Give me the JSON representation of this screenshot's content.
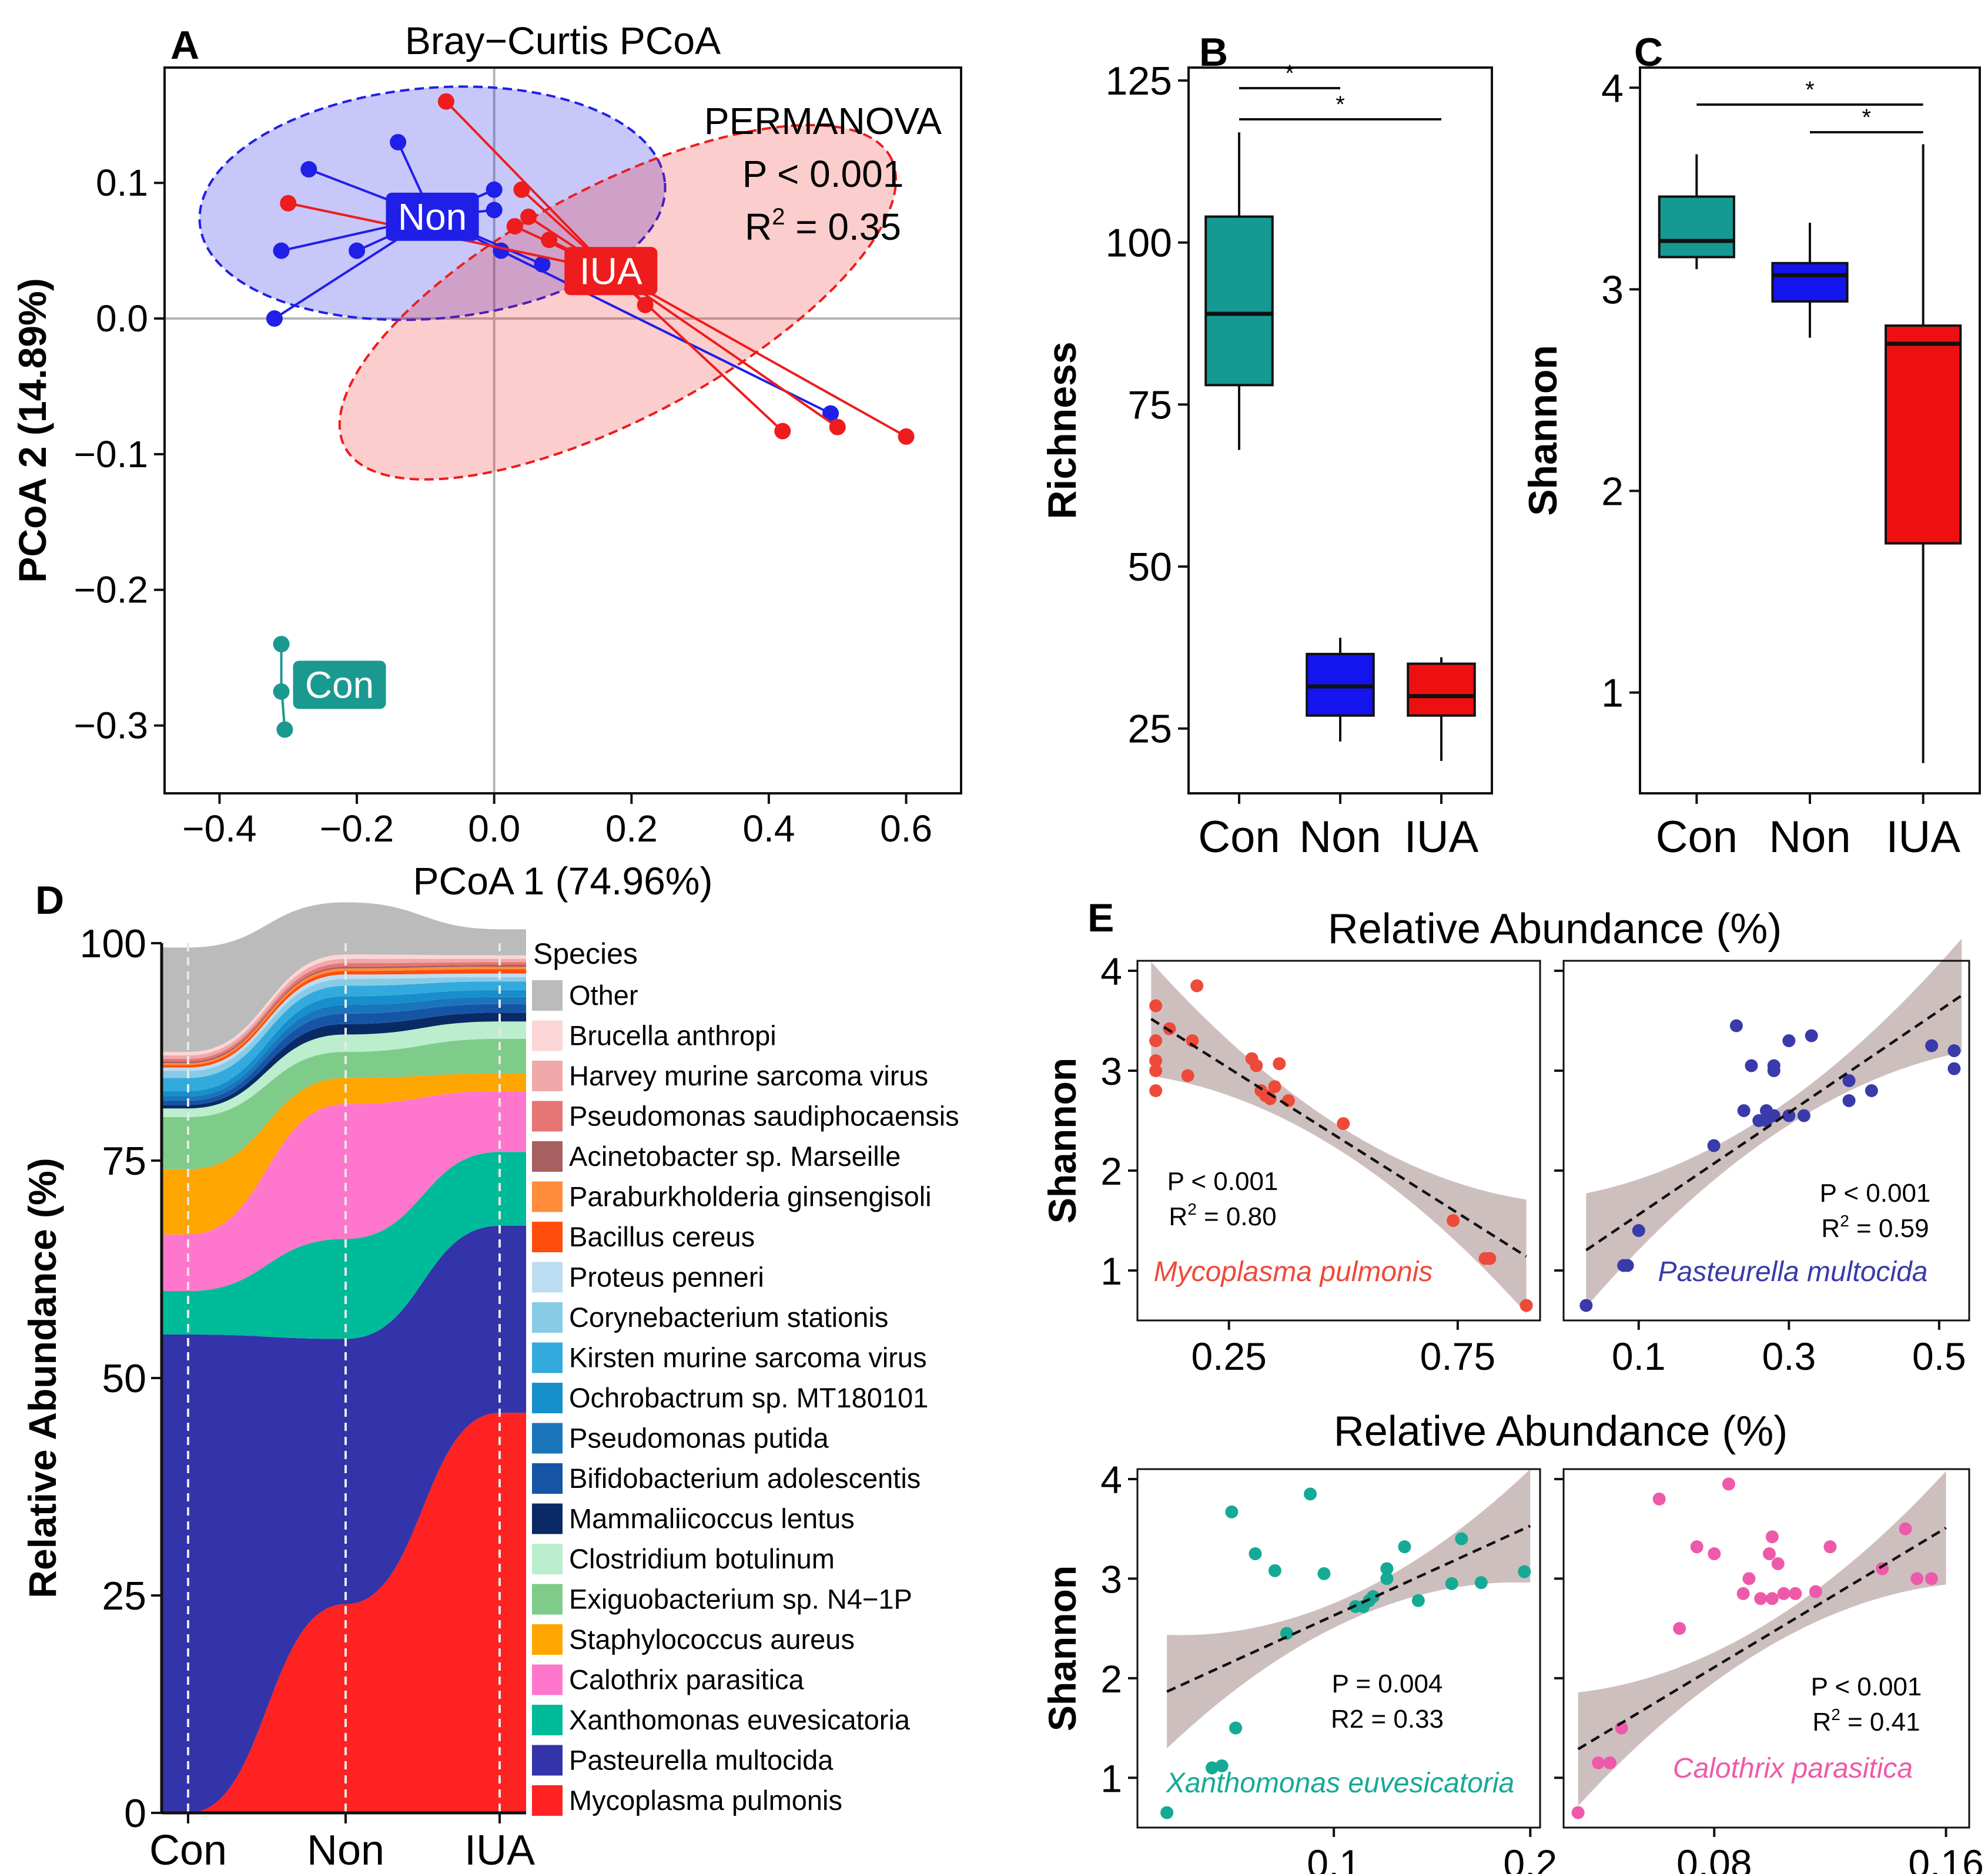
{
  "chart_data": [
    {
      "panel": "A",
      "type": "scatter",
      "title": "Bray−Curtis PCoA",
      "xlabel": "PCoA 1 (74.96%)",
      "ylabel": "PCoA 2 (14.89%)",
      "xlim": [
        -0.48,
        0.68
      ],
      "ylim": [
        -0.35,
        0.185
      ],
      "xticks": [
        -0.4,
        -0.2,
        0.0,
        0.2,
        0.4,
        0.6
      ],
      "xtick_labels": [
        "−0.4",
        "−0.2",
        "0.0",
        "0.2",
        "0.4",
        "0.6"
      ],
      "yticks": [
        -0.3,
        -0.2,
        -0.1,
        0.0,
        0.1
      ],
      "ytick_labels": [
        "−0.3",
        "−0.2",
        "−0.1",
        "0.0",
        "0.1"
      ],
      "annotation": {
        "line1": "PERMANOVA",
        "line2": "P < 0.001",
        "line3_prefix": "R",
        "line3_sup": "2",
        "line3_suffix": " = 0.35"
      },
      "groups": [
        {
          "name": "Non",
          "color": "#1f1fe8",
          "centroid": [
            -0.09,
            0.075
          ],
          "ellipse": {
            "cx": -0.09,
            "cy": 0.085,
            "rx": 0.34,
            "ry": 0.085,
            "angle": -5
          },
          "points": [
            [
              -0.14,
              0.13
            ],
            [
              -0.27,
              0.11
            ],
            [
              -0.31,
              0.05
            ],
            [
              -0.2,
              0.05
            ],
            [
              -0.32,
              0.0
            ],
            [
              0.0,
              0.095
            ],
            [
              0.0,
              0.08
            ],
            [
              0.01,
              0.05
            ],
            [
              0.07,
              0.04
            ],
            [
              0.49,
              -0.07
            ]
          ]
        },
        {
          "name": "IUA",
          "color": "#ee1c1c",
          "centroid": [
            0.17,
            0.035
          ],
          "ellipse": {
            "cx": 0.18,
            "cy": 0.012,
            "rx": 0.45,
            "ry": 0.085,
            "angle": -28
          },
          "points": [
            [
              -0.07,
              0.16
            ],
            [
              -0.3,
              0.085
            ],
            [
              0.04,
              0.095
            ],
            [
              0.05,
              0.075
            ],
            [
              0.03,
              0.068
            ],
            [
              0.08,
              0.058
            ],
            [
              0.22,
              0.01
            ],
            [
              0.42,
              -0.083
            ],
            [
              0.5,
              -0.08
            ],
            [
              0.6,
              -0.087
            ]
          ]
        },
        {
          "name": "Con",
          "color": "#1a9990",
          "centroid": [
            -0.31,
            -0.27
          ],
          "points": [
            [
              -0.31,
              -0.24
            ],
            [
              -0.31,
              -0.275
            ],
            [
              -0.305,
              -0.303
            ]
          ]
        }
      ]
    },
    {
      "panel": "B",
      "type": "box",
      "ylabel": "Richness",
      "ylim": [
        15,
        127
      ],
      "yticks": [
        25,
        50,
        75,
        100,
        125
      ],
      "categories": [
        "Con",
        "Non",
        "IUA"
      ],
      "colors": [
        "#149a93",
        "#1414ee",
        "#ee1010"
      ],
      "boxes": [
        {
          "min": 68,
          "q1": 78,
          "median": 89,
          "q3": 104,
          "max": 117
        },
        {
          "min": 23,
          "q1": 27,
          "median": 31.5,
          "q3": 36.5,
          "max": 39
        },
        {
          "min": 20,
          "q1": 27,
          "median": 30,
          "q3": 35,
          "max": 36
        }
      ],
      "significance": [
        {
          "pair": [
            "Con",
            "Non"
          ],
          "label": "*"
        },
        {
          "pair": [
            "Con",
            "IUA"
          ],
          "label": "*"
        }
      ]
    },
    {
      "panel": "C",
      "type": "box",
      "ylabel": "Shannon",
      "ylim": [
        0.5,
        4.1
      ],
      "yticks": [
        1,
        2,
        3,
        4
      ],
      "categories": [
        "Con",
        "Non",
        "IUA"
      ],
      "colors": [
        "#149a93",
        "#1414ee",
        "#ee1010"
      ],
      "boxes": [
        {
          "min": 3.1,
          "q1": 3.16,
          "median": 3.24,
          "q3": 3.46,
          "max": 3.67
        },
        {
          "min": 2.76,
          "q1": 2.94,
          "median": 3.07,
          "q3": 3.13,
          "max": 3.33
        },
        {
          "min": 0.65,
          "q1": 1.74,
          "median": 2.73,
          "q3": 2.82,
          "max": 3.72
        }
      ],
      "significance": [
        {
          "pair": [
            "Con",
            "IUA"
          ],
          "label": "*"
        },
        {
          "pair": [
            "Non",
            "IUA"
          ],
          "label": "*"
        }
      ]
    },
    {
      "panel": "D",
      "type": "area",
      "ylabel": "Relative Abundance  (%)",
      "ylim": [
        0,
        100
      ],
      "yticks": [
        0,
        25,
        50,
        75,
        100
      ],
      "categories": [
        "Con",
        "Non",
        "IUA"
      ],
      "legend_title": "Species",
      "series": [
        {
          "name": "Mycoplasma pulmonis",
          "color": "#ff2222",
          "values": [
            0,
            24,
            46
          ]
        },
        {
          "name": "Pasteurella multocida",
          "color": "#3333aa",
          "values": [
            55,
            30.5,
            21.5
          ]
        },
        {
          "name": "Xanthomonas euvesicatoria",
          "color": "#00bb99",
          "values": [
            5,
            11.5,
            8.5
          ]
        },
        {
          "name": "Calothrix parasitica",
          "color": "#ff77cc",
          "values": [
            6.5,
            15.5,
            7
          ]
        },
        {
          "name": "Staphylococcus aureus",
          "color": "#ffa500",
          "values": [
            7.5,
            3,
            2
          ]
        },
        {
          "name": "Exiguobacterium sp. N4−1P",
          "color": "#7fcc8a",
          "values": [
            6,
            3,
            4
          ]
        },
        {
          "name": "Clostridium botulinum",
          "color": "#bbeecc",
          "values": [
            1,
            2,
            2
          ]
        },
        {
          "name": "Mammaliicoccus lentus",
          "color": "#0a2a66",
          "values": [
            0.4,
            1.2,
            1
          ]
        },
        {
          "name": "Bifidobacterium adolescentis",
          "color": "#1655a6",
          "values": [
            0.5,
            1.2,
            1
          ]
        },
        {
          "name": "Pseudomonas putida",
          "color": "#1b75bb",
          "values": [
            0.5,
            1,
            0.8
          ]
        },
        {
          "name": "Ochrobactrum sp. MT180101",
          "color": "#168fcc",
          "values": [
            0.6,
            1,
            0.8
          ]
        },
        {
          "name": "Kirsten murine sarcoma virus",
          "color": "#33aadd",
          "values": [
            1.5,
            1.2,
            1
          ]
        },
        {
          "name": "Corynebacterium stationis",
          "color": "#88cbe6",
          "values": [
            0.8,
            0.8,
            0.5
          ]
        },
        {
          "name": "Proteus penneri",
          "color": "#bcdcf2",
          "values": [
            0.4,
            0.5,
            0.4
          ]
        },
        {
          "name": "Bacillus cereus",
          "color": "#ff4d0d",
          "values": [
            0.3,
            0.4,
            0.5
          ]
        },
        {
          "name": "Paraburkholderia ginsengisoli",
          "color": "#ff8c3a",
          "values": [
            0.2,
            0.3,
            0.3
          ]
        },
        {
          "name": "Acinetobacter sp. Marseille",
          "color": "#a5605f",
          "values": [
            0.2,
            0.2,
            0.2
          ]
        },
        {
          "name": "Pseudomonas saudiphocaensis",
          "color": "#e67575",
          "values": [
            0.3,
            0.4,
            0.3
          ]
        },
        {
          "name": "Harvey murine sarcoma virus",
          "color": "#f0a8a8",
          "values": [
            0.4,
            0.5,
            0.4
          ]
        },
        {
          "name": "Brucella anthropi",
          "color": "#fcd6d6",
          "values": [
            0.4,
            0.5,
            0.4
          ]
        },
        {
          "name": "Other",
          "color": "#bbbbbb",
          "values": [
            12,
            6,
            3
          ]
        }
      ]
    },
    {
      "panel": "E",
      "type": "scatter",
      "title_top": "Relative Abundance (%)",
      "title_bottom": "Relative Abundance (%)",
      "ylabel": "Shannon",
      "ylim": [
        0.5,
        4.1
      ],
      "yticks": [
        1,
        2,
        3,
        4
      ],
      "subplots": [
        {
          "species": "Mycoplasma pulmonis",
          "color": "#ee4a3a",
          "xlim": [
            0.05,
            0.93
          ],
          "xticks": [
            0.25,
            0.75
          ],
          "xtick_labels": [
            "0.25",
            "0.75"
          ],
          "stat1": "P < 0.001",
          "stat2_prefix": "R",
          "stat2_sup": "2",
          "stat2_suffix": " = 0.80",
          "fit": {
            "slope": -2.9,
            "intercept": 3.75,
            "x_range": [
              0.08,
              0.9
            ]
          },
          "points": [
            [
              0.09,
              3.65
            ],
            [
              0.09,
              3.3
            ],
            [
              0.09,
              3.1
            ],
            [
              0.09,
              3.0
            ],
            [
              0.09,
              2.8
            ],
            [
              0.12,
              3.42
            ],
            [
              0.18,
              3.85
            ],
            [
              0.17,
              3.3
            ],
            [
              0.16,
              2.95
            ],
            [
              0.3,
              3.12
            ],
            [
              0.31,
              3.05
            ],
            [
              0.36,
              3.07
            ],
            [
              0.32,
              2.8
            ],
            [
              0.34,
              2.72
            ],
            [
              0.35,
              2.84
            ],
            [
              0.38,
              2.7
            ],
            [
              0.33,
              2.75
            ],
            [
              0.5,
              2.47
            ],
            [
              0.74,
              1.5
            ],
            [
              0.81,
              1.12
            ],
            [
              0.82,
              1.12
            ],
            [
              0.9,
              0.65
            ]
          ]
        },
        {
          "species": "Pasteurella multocida",
          "color": "#3a3aaa",
          "xlim": [
            0.0,
            0.54
          ],
          "xticks": [
            0.1,
            0.3,
            0.5
          ],
          "xtick_labels": [
            "0.1",
            "0.3",
            "0.5"
          ],
          "stat1": "P < 0.001",
          "stat2_prefix": "R",
          "stat2_sup": "2",
          "stat2_suffix": " = 0.59",
          "fit": {
            "slope": 5.1,
            "intercept": 1.05,
            "x_range": [
              0.03,
              0.53
            ]
          },
          "points": [
            [
              0.23,
              3.45
            ],
            [
              0.03,
              0.65
            ],
            [
              0.08,
              1.05
            ],
            [
              0.085,
              1.05
            ],
            [
              0.1,
              1.4
            ],
            [
              0.2,
              2.25
            ],
            [
              0.24,
              2.6
            ],
            [
              0.25,
              3.05
            ],
            [
              0.28,
              3.0
            ],
            [
              0.28,
              3.05
            ],
            [
              0.3,
              3.3
            ],
            [
              0.33,
              3.35
            ],
            [
              0.26,
              2.5
            ],
            [
              0.27,
              2.5
            ],
            [
              0.27,
              2.6
            ],
            [
              0.28,
              2.55
            ],
            [
              0.3,
              2.55
            ],
            [
              0.32,
              2.55
            ],
            [
              0.38,
              2.7
            ],
            [
              0.38,
              2.9
            ],
            [
              0.41,
              2.8
            ],
            [
              0.49,
              3.25
            ],
            [
              0.52,
              3.2
            ],
            [
              0.52,
              3.02
            ]
          ]
        },
        {
          "species": "Xanthomonas euvesicatoria",
          "color": "#15aa95",
          "xlim": [
            0.0,
            0.205
          ],
          "xticks": [
            0.1,
            0.2
          ],
          "xtick_labels": [
            "0.1",
            "0.2"
          ],
          "stat1": "P = 0.004",
          "stat2_prefix": "R2 = 0.33",
          "stat2_sup": "",
          "stat2_suffix": "",
          "fit": {
            "slope": 9.0,
            "intercept": 1.73,
            "x_range": [
              0.015,
              0.2
            ]
          },
          "points": [
            [
              0.048,
              3.67
            ],
            [
              0.088,
              3.85
            ],
            [
              0.06,
              3.25
            ],
            [
              0.07,
              3.08
            ],
            [
              0.095,
              3.05
            ],
            [
              0.076,
              2.45
            ],
            [
              0.111,
              2.72
            ],
            [
              0.115,
              2.72
            ],
            [
              0.118,
              2.78
            ],
            [
              0.12,
              2.82
            ],
            [
              0.127,
              3.0
            ],
            [
              0.127,
              3.1
            ],
            [
              0.136,
              3.32
            ],
            [
              0.143,
              2.78
            ],
            [
              0.16,
              2.95
            ],
            [
              0.165,
              3.4
            ],
            [
              0.175,
              2.96
            ],
            [
              0.197,
              3.07
            ],
            [
              0.038,
              1.1
            ],
            [
              0.043,
              1.12
            ],
            [
              0.05,
              1.5
            ],
            [
              0.015,
              0.65
            ]
          ]
        },
        {
          "species": "Calothrix parasitica",
          "color": "#ee5aaa",
          "xlim": [
            0.028,
            0.168
          ],
          "xticks": [
            0.08,
            0.16
          ],
          "xtick_labels": [
            "0.08",
            "0.16"
          ],
          "stat1": "P < 0.001",
          "stat2_prefix": "R",
          "stat2_sup": "2",
          "stat2_suffix": " = 0.41",
          "fit": {
            "slope": 17.5,
            "intercept": 0.71,
            "x_range": [
              0.033,
              0.16
            ]
          },
          "points": [
            [
              0.061,
              3.8
            ],
            [
              0.085,
              3.95
            ],
            [
              0.074,
              3.32
            ],
            [
              0.08,
              3.25
            ],
            [
              0.092,
              3.0
            ],
            [
              0.099,
              3.25
            ],
            [
              0.1,
              3.42
            ],
            [
              0.102,
              3.15
            ],
            [
              0.09,
              2.85
            ],
            [
              0.096,
              2.8
            ],
            [
              0.1,
              2.8
            ],
            [
              0.104,
              2.85
            ],
            [
              0.108,
              2.85
            ],
            [
              0.115,
              2.87
            ],
            [
              0.12,
              3.32
            ],
            [
              0.138,
              3.1
            ],
            [
              0.146,
              3.5
            ],
            [
              0.15,
              3.0
            ],
            [
              0.155,
              3.0
            ],
            [
              0.068,
              2.5
            ],
            [
              0.04,
              1.15
            ],
            [
              0.044,
              1.15
            ],
            [
              0.048,
              1.5
            ],
            [
              0.033,
              0.65
            ]
          ]
        }
      ]
    }
  ],
  "labels": {
    "A": "A",
    "B": "B",
    "C": "C",
    "D": "D",
    "E": "E"
  }
}
